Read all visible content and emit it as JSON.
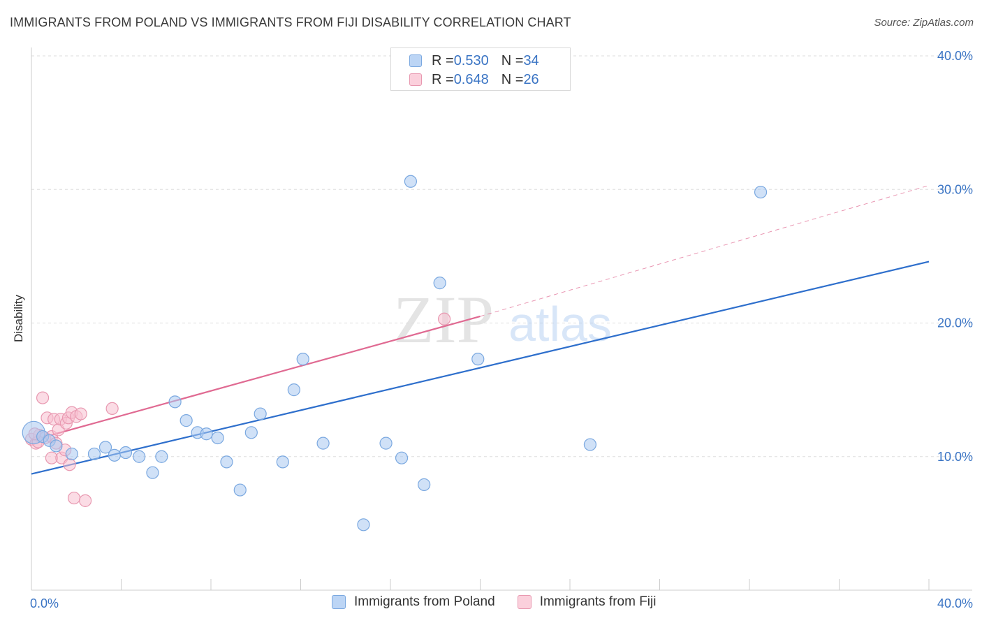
{
  "header": {
    "title": "IMMIGRANTS FROM POLAND VS IMMIGRANTS FROM FIJI DISABILITY CORRELATION CHART",
    "source": "Source: ZipAtlas.com"
  },
  "legend_stats": [
    {
      "r_label": "R = ",
      "r_value": "0.530",
      "n_label": "N = ",
      "n_value": "34",
      "color": "#a9c8f0",
      "border": "#7aa8e0"
    },
    {
      "r_label": "R = ",
      "r_value": "0.648",
      "n_label": "N = ",
      "n_value": "26",
      "color": "#f8c0d0",
      "border": "#e898b0"
    }
  ],
  "bottom_legend": [
    {
      "label": "Immigrants from Poland"
    },
    {
      "label": "Immigrants from Fiji"
    }
  ],
  "watermark": {
    "zip": "ZIP",
    "atlas": "atlas"
  },
  "colors": {
    "poland_fill": "rgba(169,200,240,0.55)",
    "poland_stroke": "#7aa8e0",
    "poland_line": "#2e6fcc",
    "fiji_fill": "rgba(248,192,208,0.55)",
    "fiji_stroke": "#e898b0",
    "fiji_line": "#e06a92",
    "axis_text": "#3a74c4",
    "grid": "#dddddd"
  },
  "chart_data": {
    "type": "scatter",
    "title": "IMMIGRANTS FROM POLAND VS IMMIGRANTS FROM FIJI DISABILITY CORRELATION CHART",
    "xlabel": "",
    "ylabel": "Disability",
    "xlim": [
      0,
      40
    ],
    "ylim": [
      0,
      40
    ],
    "x_tick_labels": [
      {
        "value": 0,
        "label": "0.0%"
      },
      {
        "value": 40,
        "label": "40.0%"
      }
    ],
    "y_tick_labels": [
      {
        "value": 10,
        "label": "10.0%"
      },
      {
        "value": 20,
        "label": "20.0%"
      },
      {
        "value": 30,
        "label": "30.0%"
      },
      {
        "value": 40,
        "label": "40.0%"
      }
    ],
    "series": [
      {
        "name": "Immigrants from Poland",
        "R": 0.53,
        "N": 34,
        "trend": {
          "x0": 0,
          "y0": 8.7,
          "x1": 40,
          "y1": 24.6
        },
        "points": [
          {
            "x": 0.1,
            "y": 11.8,
            "big": true
          },
          {
            "x": 0.5,
            "y": 11.5
          },
          {
            "x": 0.8,
            "y": 11.2
          },
          {
            "x": 1.1,
            "y": 10.8
          },
          {
            "x": 1.8,
            "y": 10.2
          },
          {
            "x": 2.8,
            "y": 10.2
          },
          {
            "x": 3.3,
            "y": 10.7
          },
          {
            "x": 3.7,
            "y": 10.1
          },
          {
            "x": 4.2,
            "y": 10.3
          },
          {
            "x": 4.8,
            "y": 10.0
          },
          {
            "x": 5.4,
            "y": 8.8
          },
          {
            "x": 5.8,
            "y": 10.0
          },
          {
            "x": 6.4,
            "y": 14.1
          },
          {
            "x": 6.9,
            "y": 12.7
          },
          {
            "x": 7.4,
            "y": 11.8
          },
          {
            "x": 7.8,
            "y": 11.7
          },
          {
            "x": 8.3,
            "y": 11.4
          },
          {
            "x": 8.7,
            "y": 9.6
          },
          {
            "x": 9.3,
            "y": 7.5
          },
          {
            "x": 9.8,
            "y": 11.8
          },
          {
            "x": 10.2,
            "y": 13.2
          },
          {
            "x": 11.2,
            "y": 9.6
          },
          {
            "x": 11.7,
            "y": 15.0
          },
          {
            "x": 12.1,
            "y": 17.3
          },
          {
            "x": 13.0,
            "y": 11.0
          },
          {
            "x": 14.8,
            "y": 4.9
          },
          {
            "x": 15.8,
            "y": 11.0
          },
          {
            "x": 16.5,
            "y": 9.9
          },
          {
            "x": 16.9,
            "y": 30.6
          },
          {
            "x": 17.5,
            "y": 7.9
          },
          {
            "x": 18.2,
            "y": 23.0
          },
          {
            "x": 19.9,
            "y": 17.3
          },
          {
            "x": 24.9,
            "y": 10.9
          },
          {
            "x": 32.5,
            "y": 29.8
          }
        ]
      },
      {
        "name": "Immigrants from Fiji",
        "R": 0.648,
        "N": 26,
        "trend": {
          "x0": 0,
          "y0": 11.2,
          "x1": 20.0,
          "y1": 20.5
        },
        "trend_extension": {
          "x0": 20.0,
          "y0": 20.5,
          "x1": 40,
          "y1": 30.3
        },
        "points": [
          {
            "x": 0.0,
            "y": 11.3
          },
          {
            "x": 0.2,
            "y": 11.0
          },
          {
            "x": 0.35,
            "y": 11.6
          },
          {
            "x": 0.5,
            "y": 14.4
          },
          {
            "x": 0.6,
            "y": 11.4
          },
          {
            "x": 0.7,
            "y": 12.9
          },
          {
            "x": 0.9,
            "y": 11.5
          },
          {
            "x": 0.9,
            "y": 9.9
          },
          {
            "x": 1.0,
            "y": 12.8
          },
          {
            "x": 1.2,
            "y": 12.0
          },
          {
            "x": 1.3,
            "y": 12.8
          },
          {
            "x": 1.35,
            "y": 9.9
          },
          {
            "x": 1.5,
            "y": 10.5
          },
          {
            "x": 1.55,
            "y": 12.5
          },
          {
            "x": 1.65,
            "y": 12.9
          },
          {
            "x": 1.7,
            "y": 9.4
          },
          {
            "x": 1.8,
            "y": 13.3
          },
          {
            "x": 1.9,
            "y": 6.9
          },
          {
            "x": 2.0,
            "y": 13.0
          },
          {
            "x": 2.2,
            "y": 13.2
          },
          {
            "x": 2.4,
            "y": 6.7
          },
          {
            "x": 3.6,
            "y": 13.6
          },
          {
            "x": 0.3,
            "y": 11.1
          },
          {
            "x": 0.15,
            "y": 11.7
          },
          {
            "x": 1.1,
            "y": 11.0
          },
          {
            "x": 18.4,
            "y": 20.3
          }
        ]
      }
    ]
  }
}
